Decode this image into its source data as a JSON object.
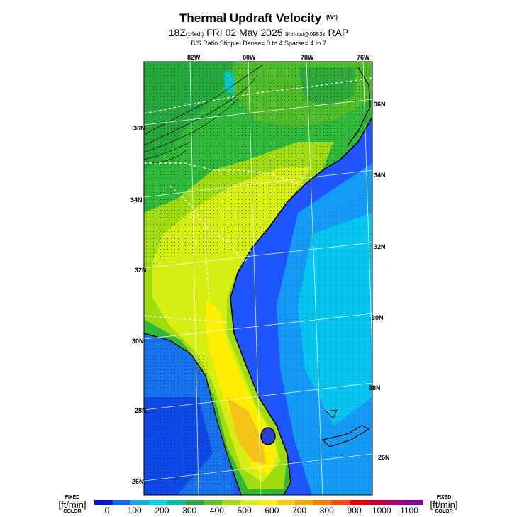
{
  "header": {
    "title": "Thermal Updraft Velocity",
    "title_sup": "(W*)",
    "subtitle_main": "18Z",
    "subtitle_small1": "(14edt)",
    "subtitle_mid": " FRI 02 May 2025 ",
    "subtitle_small2": "9hrl-cst@0953z",
    "subtitle_end": " RAP",
    "note": "B/S Ratio Stipple:  Dense= 0 to 4  Sparse= 4 to 7"
  },
  "map": {
    "lon_labels": [
      "82W",
      "80W",
      "78W",
      "76W"
    ],
    "lat_labels_left": [
      "36N",
      "34N",
      "32N",
      "30N",
      "28N",
      "26N"
    ],
    "lat_labels_right": [
      "36N",
      "34N",
      "32N",
      "30N",
      "28N",
      "26N"
    ],
    "ocean_color": "#1e5bff",
    "land_colors": {
      "low": "#0f7fe8",
      "mid": "#2fbf3a",
      "high": "#d8ef18",
      "peak": "#f7c217"
    }
  },
  "colorbar": {
    "left_label": {
      "fixed": "FIXED",
      "unit": "[ft/min]",
      "color": "COLOR"
    },
    "right_label": {
      "fixed": "FIXED",
      "unit": "[ft/min]",
      "color": "COLOR"
    },
    "ticks": [
      "0",
      "100",
      "200",
      "300",
      "400",
      "500",
      "600",
      "700",
      "800",
      "900",
      "1000",
      "1100"
    ],
    "colors": [
      "#0018d8",
      "#0f6bf5",
      "#14a8f0",
      "#00d8e8",
      "#00bfa3",
      "#2ca53f",
      "#5fc21e",
      "#9fdc10",
      "#d6ef12",
      "#ffee00",
      "#ffcb00",
      "#ffa500",
      "#ff7b00",
      "#ff4800",
      "#f20000",
      "#d10034",
      "#b0007a",
      "#8a00a0"
    ]
  }
}
